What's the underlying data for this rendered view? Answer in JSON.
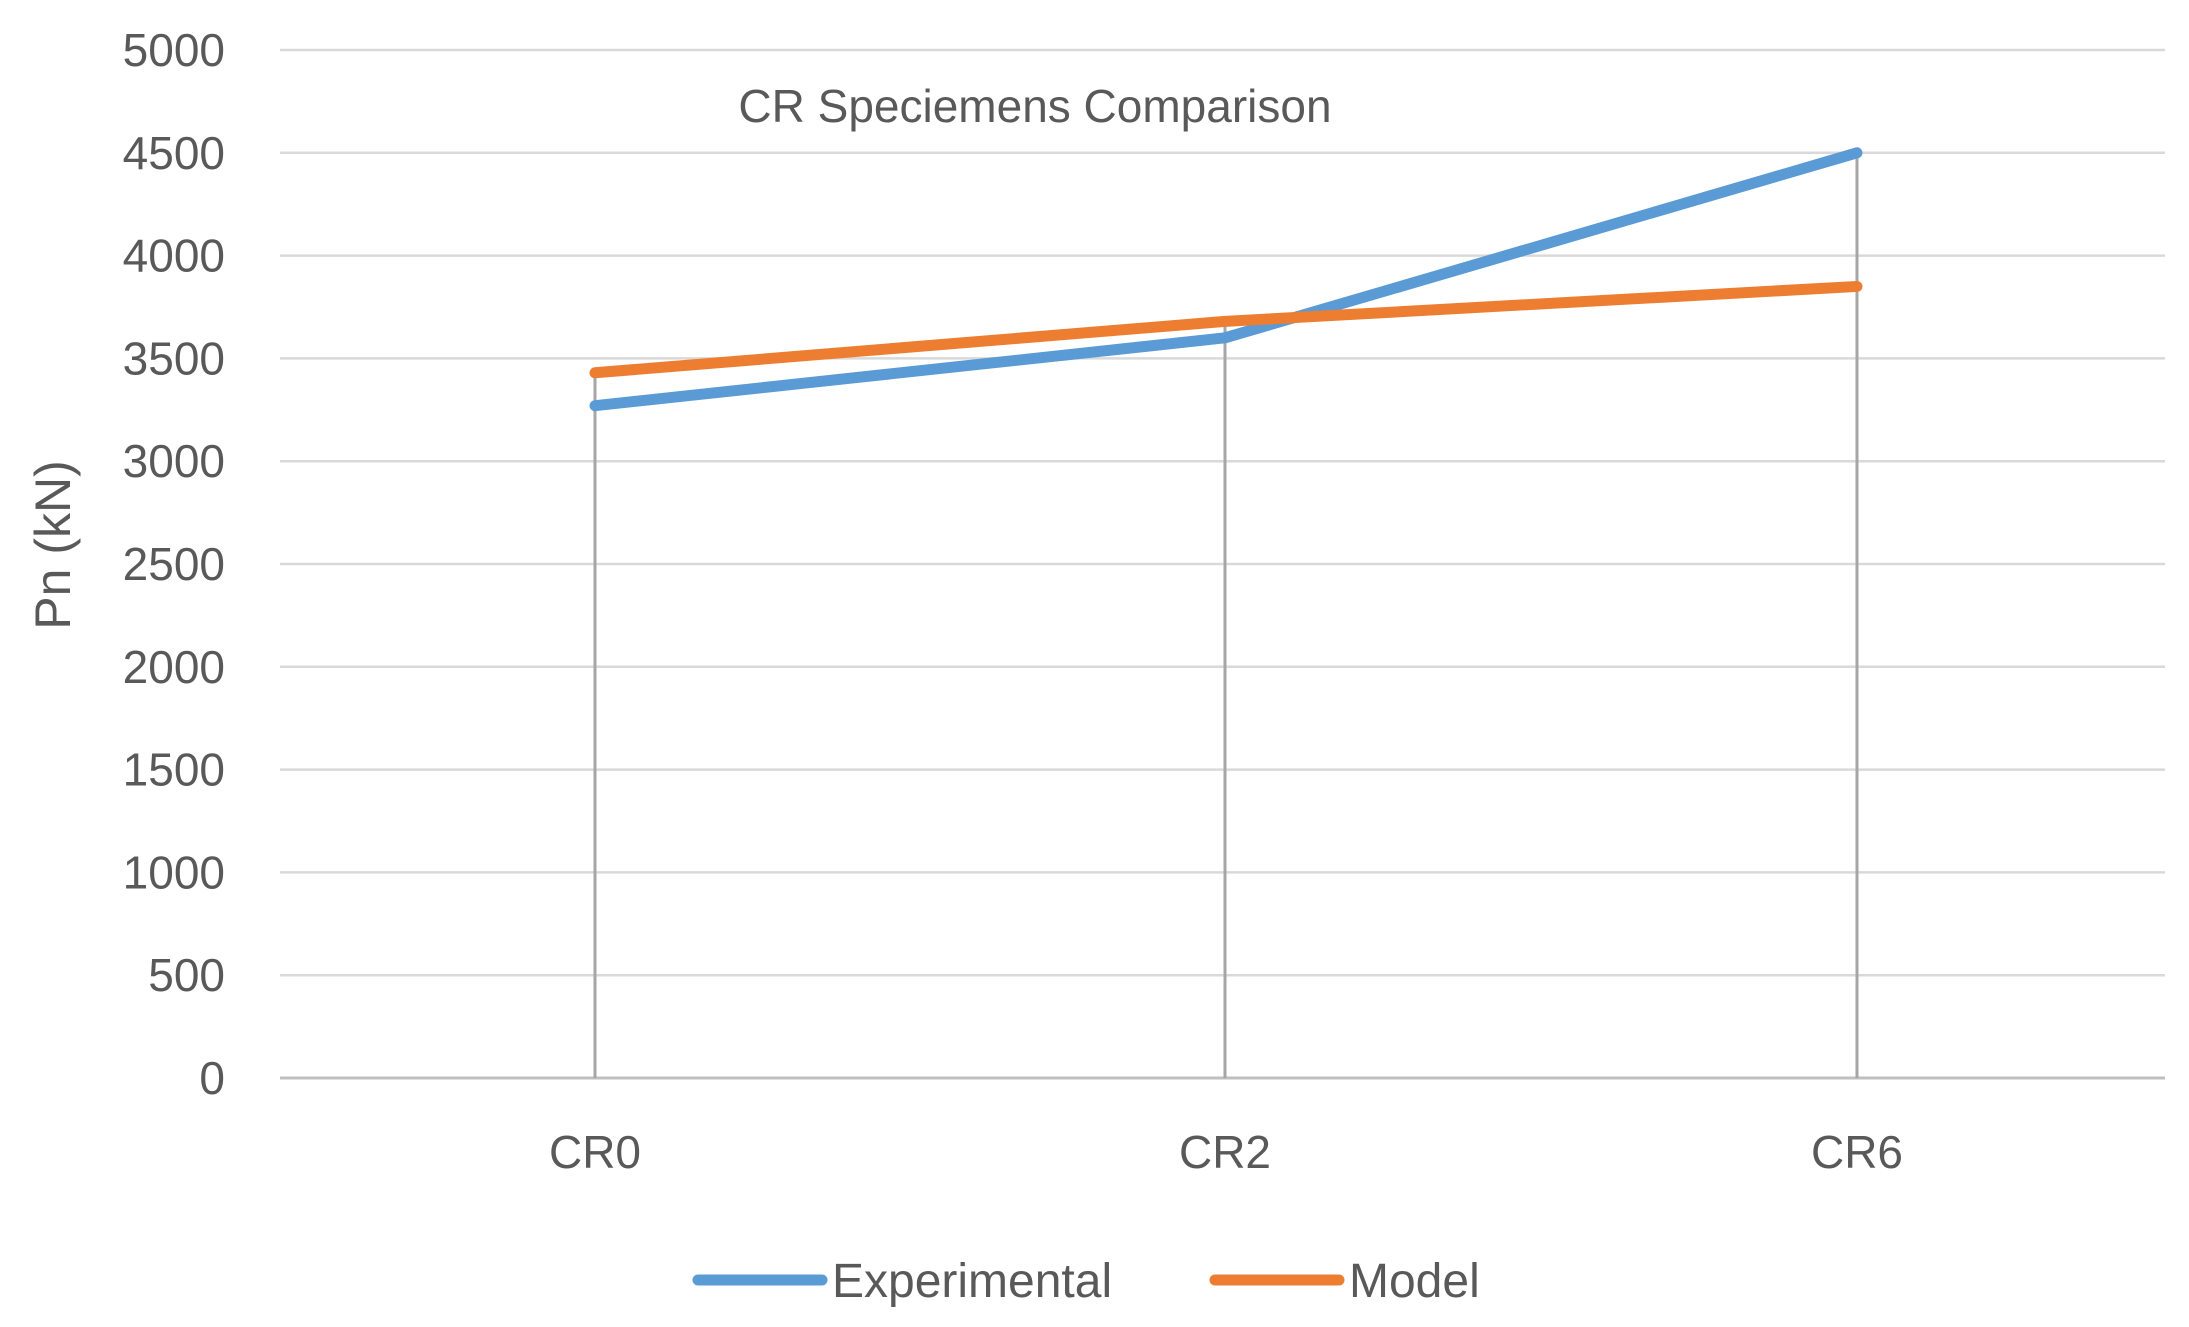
{
  "chart_data": {
    "type": "line",
    "title": "CR Speciemens Comparison",
    "xlabel": "",
    "ylabel": "Pn (kN)",
    "categories": [
      "CR0",
      "CR2",
      "CR6"
    ],
    "ylim": [
      0,
      5000
    ],
    "yticks": [
      0,
      500,
      1000,
      1500,
      2000,
      2500,
      3000,
      3500,
      4000,
      4500,
      5000
    ],
    "grid": true,
    "legend_position": "bottom",
    "series": [
      {
        "name": "Experimental",
        "color": "#5B9BD5",
        "values": [
          3270,
          3600,
          4500
        ]
      },
      {
        "name": "Model",
        "color": "#ED7D31",
        "values": [
          3430,
          3680,
          3850
        ]
      }
    ],
    "drop_lines": true
  }
}
